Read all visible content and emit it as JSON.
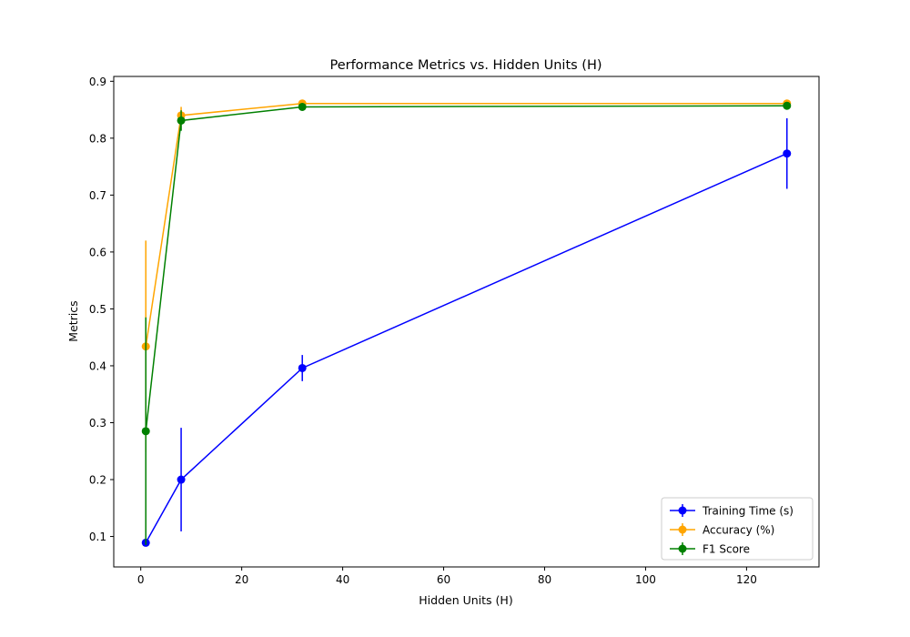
{
  "chart_data": {
    "type": "line",
    "title": "Performance Metrics vs. Hidden Units (H)",
    "xlabel": "Hidden Units (H)",
    "ylabel": "Metrics",
    "xlim": [
      -5.35,
      134.35
    ],
    "ylim": [
      0.0465,
      0.9085
    ],
    "x_ticks": [
      0,
      20,
      40,
      60,
      80,
      100,
      120
    ],
    "x_tick_labels": [
      "0",
      "20",
      "40",
      "60",
      "80",
      "100",
      "120"
    ],
    "y_ticks": [
      0.1,
      0.2,
      0.3,
      0.4,
      0.5,
      0.6,
      0.7,
      0.8,
      0.9
    ],
    "y_tick_labels": [
      "0.1",
      "0.2",
      "0.3",
      "0.4",
      "0.5",
      "0.6",
      "0.7",
      "0.8",
      "0.9"
    ],
    "grid": false,
    "legend_position": "bottom-right",
    "series": [
      {
        "name": "Training Time (s)",
        "color": "#0000ff",
        "x": [
          1,
          8,
          32,
          128
        ],
        "y": [
          0.089,
          0.2,
          0.396,
          0.773
        ],
        "yerr": [
          0.0,
          0.091,
          0.023,
          0.062
        ]
      },
      {
        "name": "Accuracy (%)",
        "color": "#ffa500",
        "x": [
          1,
          8,
          32,
          128
        ],
        "y": [
          0.434,
          0.84,
          0.861,
          0.861
        ],
        "yerr": [
          0.186,
          0.015,
          0.003,
          0.003
        ]
      },
      {
        "name": "F1 Score",
        "color": "#008000",
        "x": [
          1,
          8,
          32,
          128
        ],
        "y": [
          0.285,
          0.831,
          0.855,
          0.857
        ],
        "yerr": [
          0.2,
          0.018,
          0.003,
          0.003
        ]
      }
    ]
  }
}
